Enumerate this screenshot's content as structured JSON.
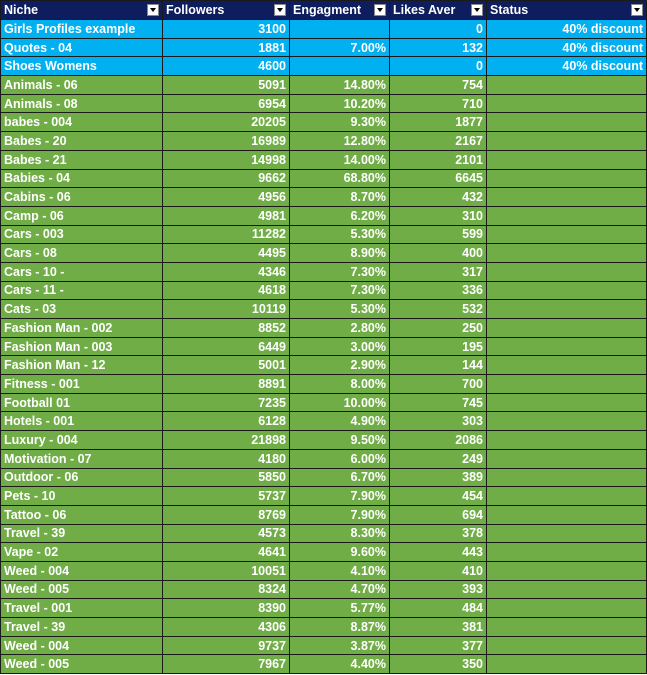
{
  "table": {
    "columns": [
      "Niche",
      "Followers",
      "Engagment",
      "Likes Aver",
      "Status"
    ],
    "rows": [
      [
        "Girls Profiles example",
        3100,
        null,
        0,
        "40% discount"
      ],
      [
        "Quotes - 04",
        1881,
        "7.00%",
        132,
        "40% discount"
      ],
      [
        "Shoes Womens",
        4600,
        null,
        0,
        "40% discount"
      ],
      [
        "Animals - 06",
        5091,
        "14.80%",
        754,
        null
      ],
      [
        "Animals - 08",
        6954,
        "10.20%",
        710,
        null
      ],
      [
        "babes - 004",
        20205,
        "9.30%",
        1877,
        null
      ],
      [
        "Babes - 20",
        16989,
        "12.80%",
        2167,
        null
      ],
      [
        "Babes - 21",
        14998,
        "14.00%",
        2101,
        null
      ],
      [
        "Babies - 04",
        9662,
        "68.80%",
        6645,
        null
      ],
      [
        "Cabins - 06",
        4956,
        "8.70%",
        432,
        null
      ],
      [
        "Camp - 06",
        4981,
        "6.20%",
        310,
        null
      ],
      [
        "Cars - 003",
        11282,
        "5.30%",
        599,
        null
      ],
      [
        "Cars - 08",
        4495,
        "8.90%",
        400,
        null
      ],
      [
        "Cars - 10 -",
        4346,
        "7.30%",
        317,
        null
      ],
      [
        "Cars - 11 -",
        4618,
        "7.30%",
        336,
        null
      ],
      [
        "Cats - 03",
        10119,
        "5.30%",
        532,
        null
      ],
      [
        "Fashion Man - 002",
        8852,
        "2.80%",
        250,
        null
      ],
      [
        "Fashion Man - 003",
        6449,
        "3.00%",
        195,
        null
      ],
      [
        "Fashion Man - 12",
        5001,
        "2.90%",
        144,
        null
      ],
      [
        "Fitness - 001",
        8891,
        "8.00%",
        700,
        null
      ],
      [
        "Football 01",
        7235,
        "10.00%",
        745,
        null
      ],
      [
        "Hotels - 001",
        6128,
        "4.90%",
        303,
        null
      ],
      [
        "Luxury - 004",
        21898,
        "9.50%",
        2086,
        null
      ],
      [
        "Motivation - 07",
        4180,
        "6.00%",
        249,
        null
      ],
      [
        "Outdoor - 06",
        5850,
        "6.70%",
        389,
        null
      ],
      [
        "Pets - 10",
        5737,
        "7.90%",
        454,
        null
      ],
      [
        "Tattoo - 06",
        8769,
        "7.90%",
        694,
        null
      ],
      [
        "Travel - 39",
        4573,
        "8.30%",
        378,
        null
      ],
      [
        "Vape - 02",
        4641,
        "9.60%",
        443,
        null
      ],
      [
        "Weed - 004",
        10051,
        "4.10%",
        410,
        null
      ],
      [
        "Weed - 005",
        8324,
        "4.70%",
        393,
        null
      ],
      [
        "Travel - 001",
        8390,
        "5.77%",
        484,
        null
      ],
      [
        "Travel - 39",
        4306,
        "8.87%",
        381,
        null
      ],
      [
        "Weed - 004",
        9737,
        "3.87%",
        377,
        null
      ],
      [
        "Weed - 005",
        7967,
        "4.40%",
        350,
        null
      ]
    ]
  }
}
